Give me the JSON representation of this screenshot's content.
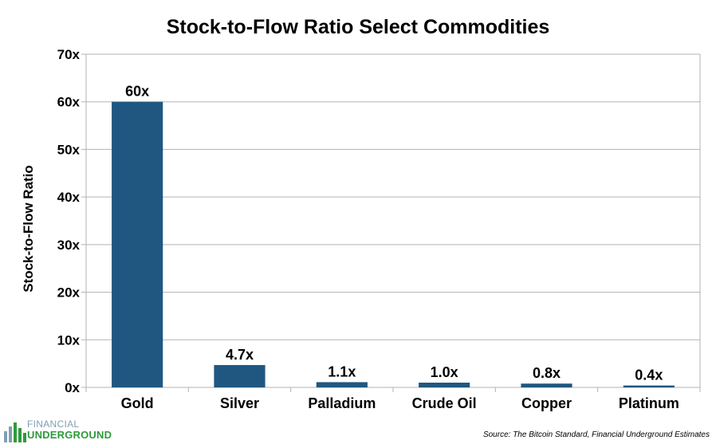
{
  "chart_data": {
    "type": "bar",
    "title": "Stock-to-Flow Ratio Select Commodities",
    "ylabel": "Stock-to-Flow Ratio",
    "xlabel": "",
    "categories": [
      "Gold",
      "Silver",
      "Palladium",
      "Crude Oil",
      "Copper",
      "Platinum"
    ],
    "values": [
      60,
      4.7,
      1.1,
      1.0,
      0.8,
      0.4
    ],
    "data_labels": [
      "60x",
      "4.7x",
      "1.1x",
      "1.0x",
      "0.8x",
      "0.4x"
    ],
    "ylim": [
      0,
      70
    ],
    "yticks": [
      0,
      10,
      20,
      30,
      40,
      50,
      60,
      70
    ],
    "ytick_labels": [
      "0x",
      "10x",
      "20x",
      "30x",
      "40x",
      "50x",
      "60x",
      "70x"
    ],
    "grid": true,
    "legend": "none",
    "bar_color": "#1f5781",
    "grid_color": "#b3b3b3"
  },
  "source_note": "Source: The Bitcoin Standard, Financial Underground Estimates",
  "logo": {
    "top_text": "FINANCIAL",
    "bottom_text": "UNDERGROUND",
    "icon": "bar-columns-icon"
  }
}
